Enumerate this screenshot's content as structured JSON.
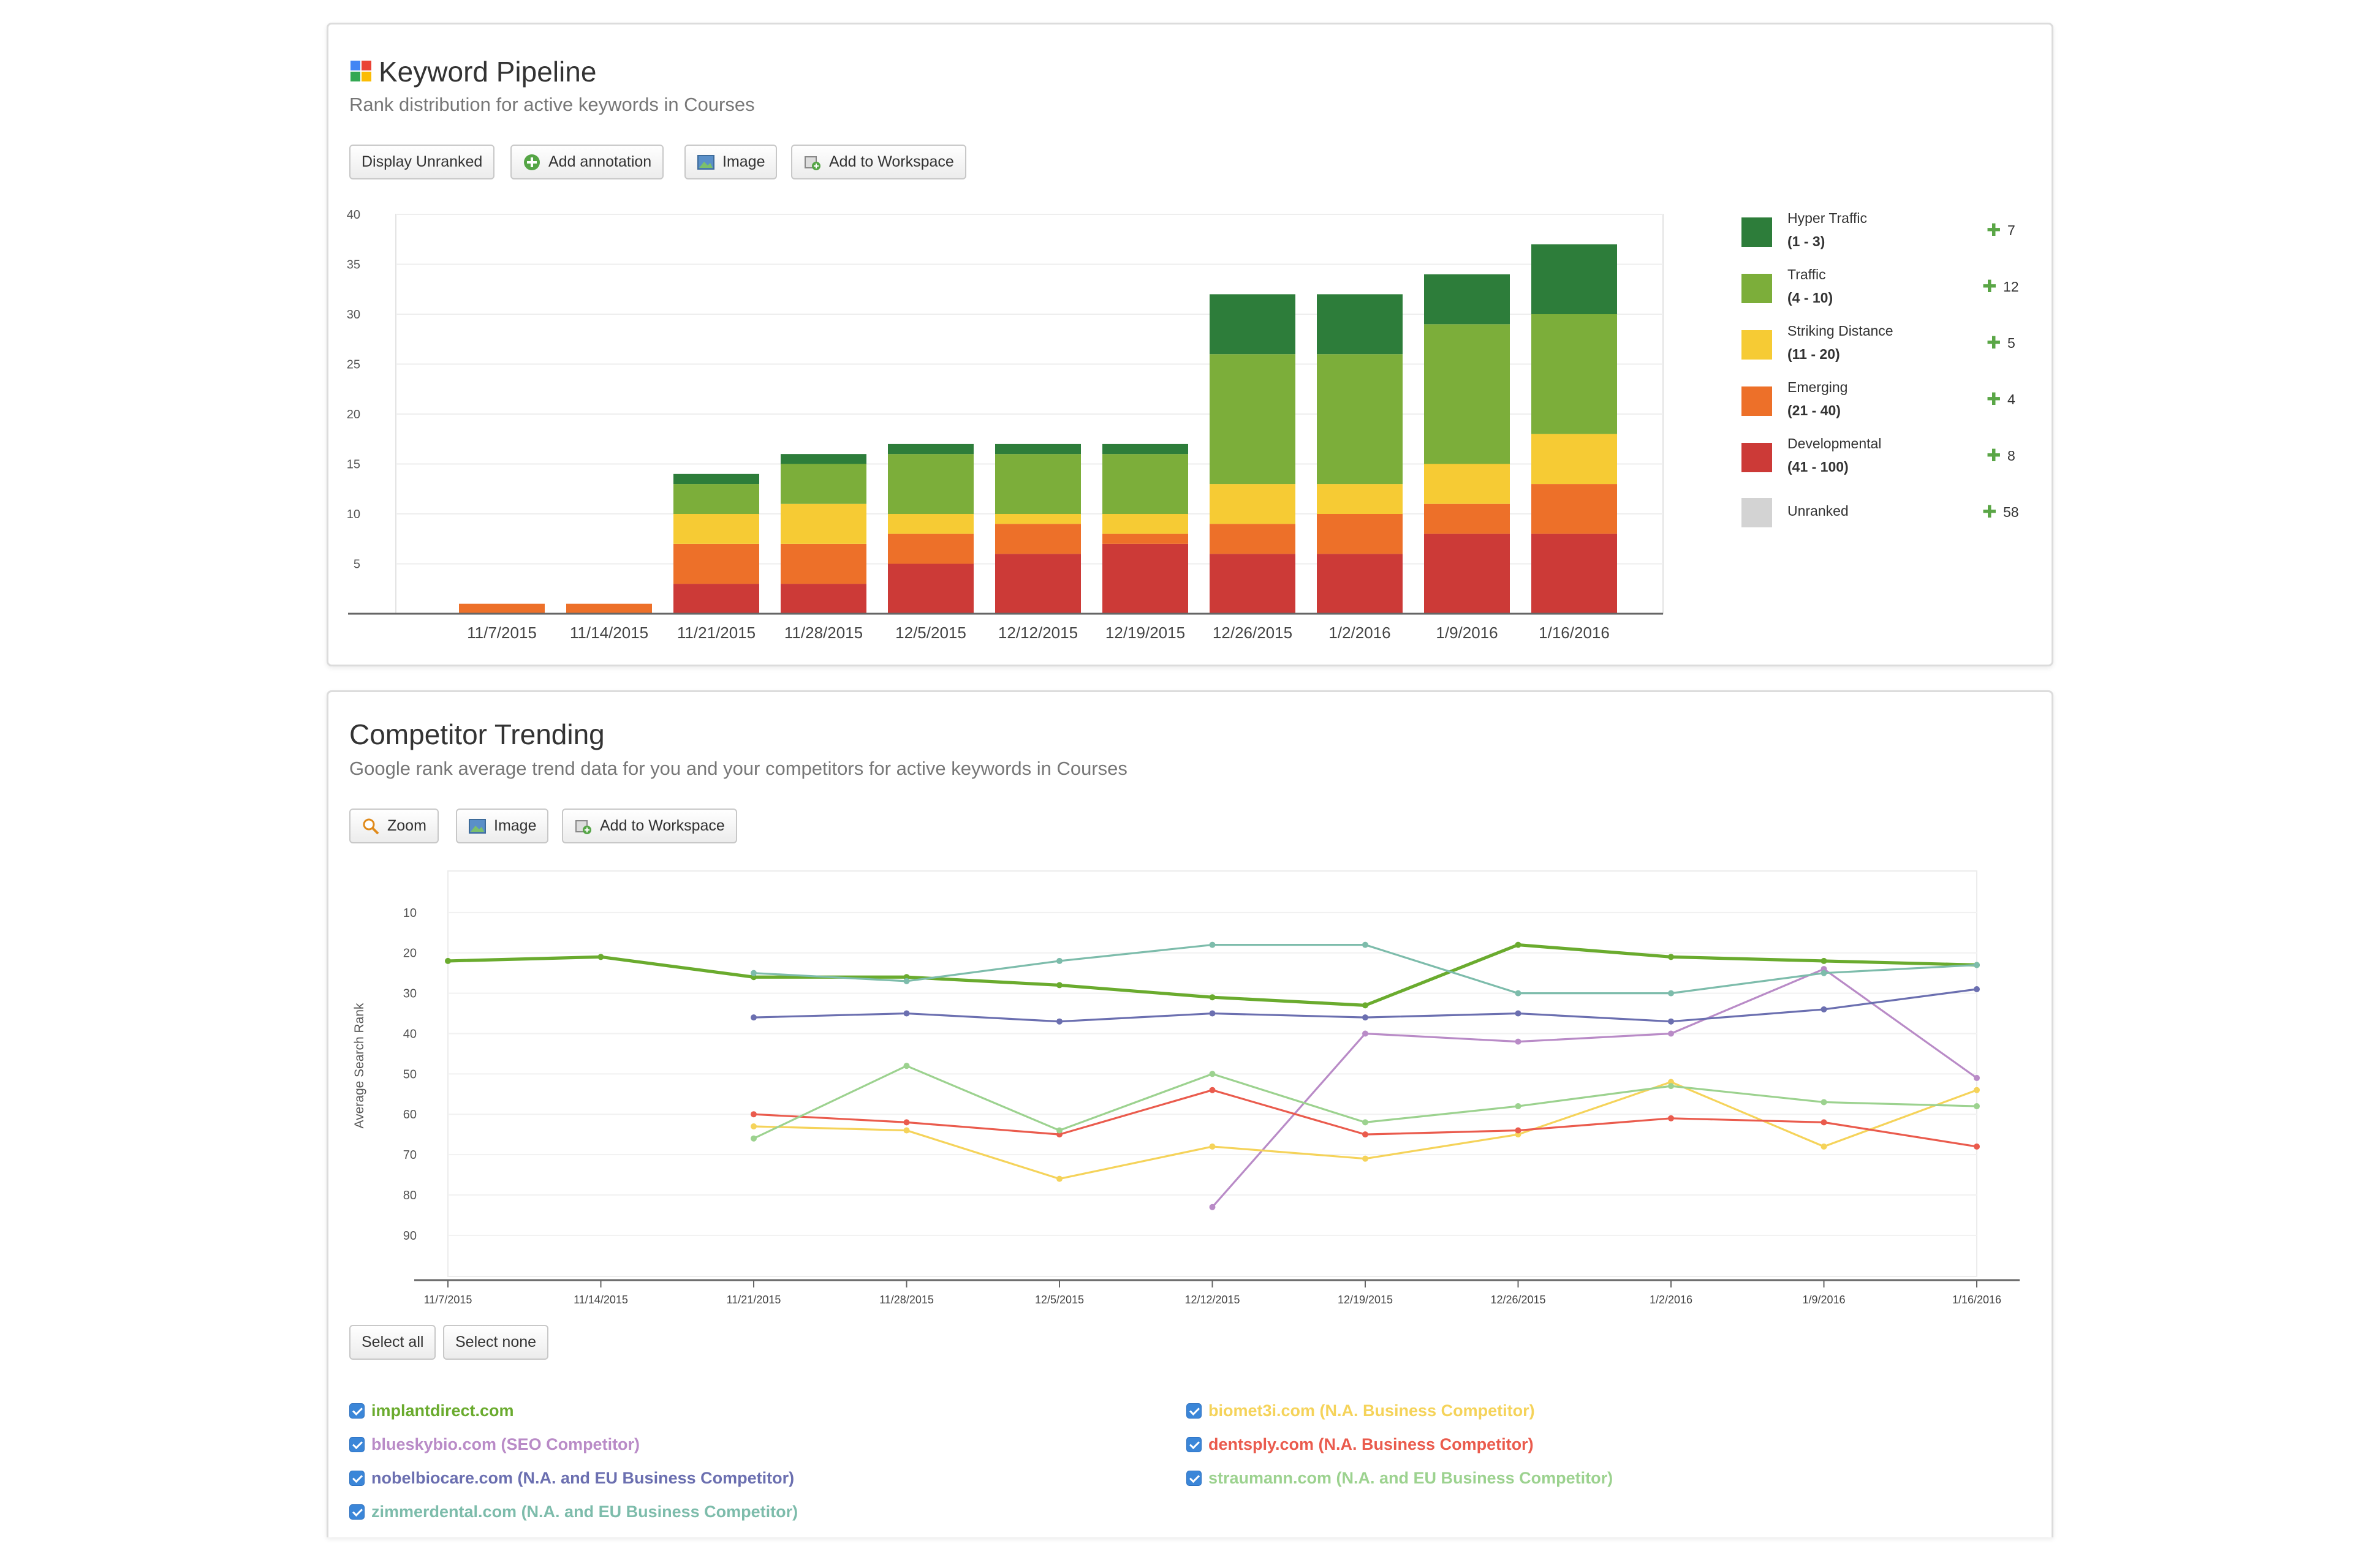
{
  "pipeline": {
    "title": "Keyword Pipeline",
    "subtitle": "Rank distribution for active keywords in Courses",
    "buttons": {
      "display_unranked": "Display Unranked",
      "add_annotation": "Add annotation",
      "image": "Image",
      "add_to_workspace": "Add to Workspace"
    },
    "legend": [
      {
        "name": "Hyper Traffic",
        "range": "(1 - 3)",
        "delta": "7",
        "color": "#2d7d3a"
      },
      {
        "name": "Traffic",
        "range": "(4 - 10)",
        "delta": "12",
        "color": "#7cae3a"
      },
      {
        "name": "Striking Distance",
        "range": "(11 - 20)",
        "delta": "5",
        "color": "#f6cb34"
      },
      {
        "name": "Emerging",
        "range": "(21 - 40)",
        "delta": "4",
        "color": "#ed7029"
      },
      {
        "name": "Developmental",
        "range": "(41 - 100)",
        "delta": "8",
        "color": "#cc3a37"
      },
      {
        "name": "Unranked",
        "range": "",
        "delta": "58",
        "color": "#d3d3d3"
      }
    ]
  },
  "trending": {
    "title": "Competitor Trending",
    "subtitle": "Google rank average trend data for you and your competitors for active keywords in Courses",
    "buttons": {
      "zoom": "Zoom",
      "image": "Image",
      "add_to_workspace": "Add to Workspace",
      "select_all": "Select all",
      "select_none": "Select none"
    }
  },
  "chart_data": [
    {
      "type": "bar",
      "stacked": true,
      "categories": [
        "11/7/2015",
        "11/14/2015",
        "11/21/2015",
        "11/28/2015",
        "12/5/2015",
        "12/12/2015",
        "12/19/2015",
        "12/26/2015",
        "1/2/2016",
        "1/9/2016",
        "1/16/2016"
      ],
      "ylim": [
        0,
        40
      ],
      "yticks": [
        5,
        10,
        15,
        20,
        25,
        30,
        35,
        40
      ],
      "grid": true,
      "legend_position": "right",
      "series": [
        {
          "name": "Developmental",
          "color": "#cc3a37",
          "values": [
            0,
            0,
            3,
            3,
            5,
            6,
            7,
            6,
            6,
            8,
            8
          ]
        },
        {
          "name": "Emerging",
          "color": "#ed7029",
          "values": [
            1,
            1,
            4,
            4,
            3,
            3,
            1,
            3,
            4,
            3,
            5
          ]
        },
        {
          "name": "Striking Distance",
          "color": "#f6cb34",
          "values": [
            0,
            0,
            3,
            4,
            2,
            1,
            2,
            4,
            3,
            4,
            5
          ]
        },
        {
          "name": "Traffic",
          "color": "#7cae3a",
          "values": [
            0,
            0,
            3,
            4,
            6,
            6,
            6,
            13,
            13,
            14,
            12
          ]
        },
        {
          "name": "Hyper Traffic",
          "color": "#2d7d3a",
          "values": [
            0,
            0,
            1,
            1,
            1,
            1,
            1,
            6,
            6,
            5,
            7
          ]
        }
      ]
    },
    {
      "type": "line",
      "x": [
        "11/7/2015",
        "11/14/2015",
        "11/21/2015",
        "11/28/2015",
        "12/5/2015",
        "12/12/2015",
        "12/19/2015",
        "12/26/2015",
        "1/2/2016",
        "1/9/2016",
        "1/16/2016"
      ],
      "ylabel": "Average Search Rank",
      "ylim": [
        0,
        100
      ],
      "y_reversed": true,
      "yticks": [
        10,
        20,
        30,
        40,
        50,
        60,
        70,
        80,
        90
      ],
      "grid": true,
      "legend_position": "bottom",
      "series": [
        {
          "name": "implantdirect.com",
          "color": "#6aab2e",
          "width": 2.6,
          "values": [
            22,
            21,
            26,
            26,
            28,
            31,
            33,
            18,
            21,
            22,
            23
          ]
        },
        {
          "name": "blueskybio.com (SEO Competitor)",
          "color": "#b98bc7",
          "width": 1.6,
          "values": [
            null,
            null,
            null,
            null,
            null,
            83,
            40,
            42,
            40,
            24,
            51
          ]
        },
        {
          "name": "nobelbiocare.com (N.A. and EU Business Competitor)",
          "color": "#6b6fb0",
          "width": 1.6,
          "values": [
            null,
            null,
            36,
            35,
            37,
            35,
            36,
            35,
            37,
            34,
            29
          ]
        },
        {
          "name": "zimmerdental.com (N.A. and EU Business Competitor)",
          "color": "#7dbcab",
          "width": 1.6,
          "values": [
            null,
            null,
            25,
            27,
            22,
            18,
            18,
            30,
            30,
            25,
            23
          ]
        },
        {
          "name": "biomet3i.com (N.A. Business Competitor)",
          "color": "#f5d35a",
          "width": 1.6,
          "values": [
            null,
            null,
            63,
            64,
            76,
            68,
            71,
            65,
            52,
            68,
            54
          ]
        },
        {
          "name": "dentsply.com (N.A. Business Competitor)",
          "color": "#ea5b4d",
          "width": 1.6,
          "values": [
            null,
            null,
            60,
            62,
            65,
            54,
            65,
            64,
            61,
            62,
            68
          ]
        },
        {
          "name": "straumann.com (N.A. and EU Business Competitor)",
          "color": "#9cd28f",
          "width": 1.6,
          "values": [
            null,
            null,
            66,
            48,
            64,
            50,
            62,
            58,
            53,
            57,
            58
          ]
        }
      ]
    }
  ]
}
